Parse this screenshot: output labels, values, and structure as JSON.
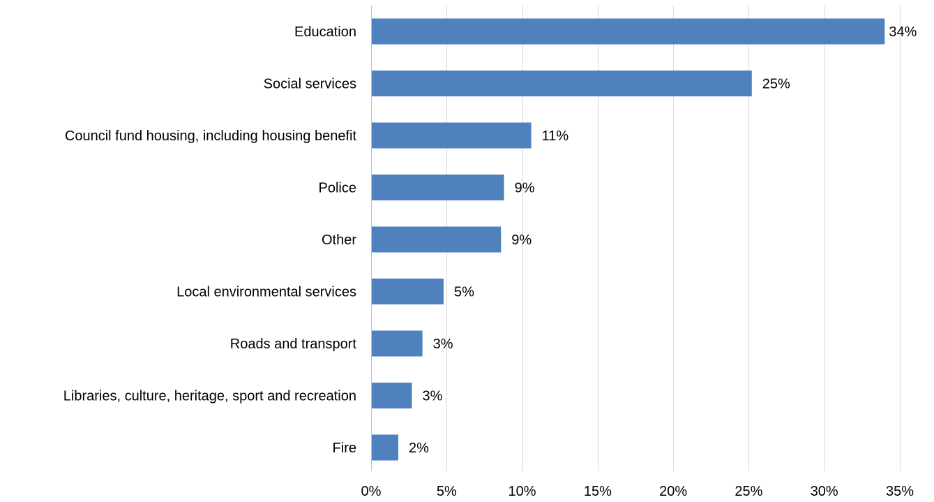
{
  "chart_data": {
    "type": "bar",
    "orientation": "horizontal",
    "title": "",
    "xlabel": "",
    "ylabel": "",
    "categories": [
      "Education",
      "Social services",
      "Council fund housing, including housing benefit",
      "Police",
      "Other",
      "Local environmental services",
      "Roads and transport",
      "Libraries, culture, heritage, sport and recreation",
      "Fire"
    ],
    "values": [
      34,
      25.2,
      10.6,
      8.8,
      8.6,
      4.8,
      3.4,
      2.7,
      1.8
    ],
    "value_labels": [
      "34%",
      "25%",
      "11%",
      "9%",
      "9%",
      "5%",
      "3%",
      "3%",
      "2%"
    ],
    "xlim": [
      0,
      35
    ],
    "x_ticks": [
      0,
      5,
      10,
      15,
      20,
      25,
      30,
      35
    ],
    "x_tick_labels": [
      "0%",
      "5%",
      "10%",
      "15%",
      "20%",
      "25%",
      "30%",
      "35%"
    ],
    "grid": "vertical",
    "legend": "none",
    "bar_color": "#4f81bd"
  }
}
